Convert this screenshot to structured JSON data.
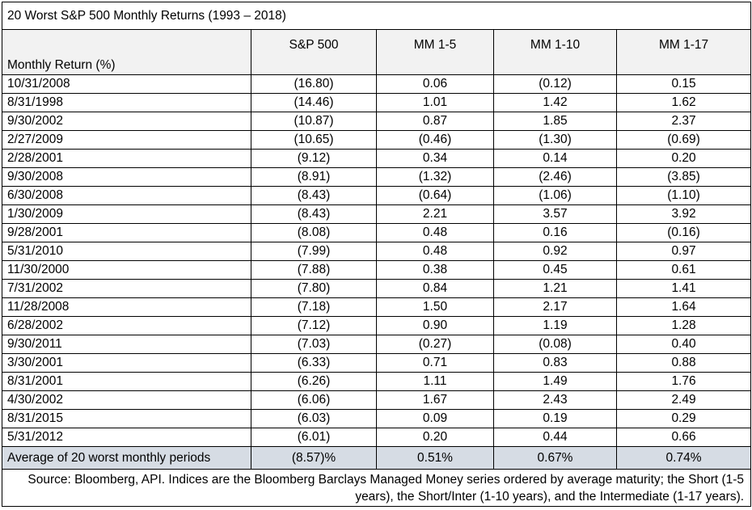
{
  "title": "20 Worst S&P 500 Monthly Returns (1993 – 2018)",
  "headers": [
    "Monthly Return (%)",
    "S&P 500",
    "MM 1-5",
    "MM 1-10",
    "MM 1-17"
  ],
  "rows": [
    [
      "10/31/2008",
      "(16.80)",
      "0.06",
      "(0.12)",
      "0.15"
    ],
    [
      "8/31/1998",
      "(14.46)",
      "1.01",
      "1.42",
      "1.62"
    ],
    [
      "9/30/2002",
      "(10.87)",
      "0.87",
      "1.85",
      "2.37"
    ],
    [
      "2/27/2009",
      "(10.65)",
      "(0.46)",
      "(1.30)",
      "(0.69)"
    ],
    [
      "2/28/2001",
      "(9.12)",
      "0.34",
      "0.14",
      "0.20"
    ],
    [
      "9/30/2008",
      "(8.91)",
      "(1.32)",
      "(2.46)",
      "(3.85)"
    ],
    [
      "6/30/2008",
      "(8.43)",
      "(0.64)",
      "(1.06)",
      "(1.10)"
    ],
    [
      "1/30/2009",
      "(8.43)",
      "2.21",
      "3.57",
      "3.92"
    ],
    [
      "9/28/2001",
      "(8.08)",
      "0.48",
      "0.16",
      "(0.16)"
    ],
    [
      "5/31/2010",
      "(7.99)",
      "0.48",
      "0.92",
      "0.97"
    ],
    [
      "11/30/2000",
      "(7.88)",
      "0.38",
      "0.45",
      "0.61"
    ],
    [
      "7/31/2002",
      "(7.80)",
      "0.84",
      "1.21",
      "1.41"
    ],
    [
      "11/28/2008",
      "(7.18)",
      "1.50",
      "2.17",
      "1.64"
    ],
    [
      "6/28/2002",
      "(7.12)",
      "0.90",
      "1.19",
      "1.28"
    ],
    [
      "9/30/2011",
      "(7.03)",
      "(0.27)",
      "(0.08)",
      "0.40"
    ],
    [
      "3/30/2001",
      "(6.33)",
      "0.71",
      "0.83",
      "0.88"
    ],
    [
      "8/31/2001",
      "(6.26)",
      "1.11",
      "1.49",
      "1.76"
    ],
    [
      "4/30/2002",
      "(6.06)",
      "1.67",
      "2.43",
      "2.49"
    ],
    [
      "8/31/2015",
      "(6.03)",
      "0.09",
      "0.19",
      "0.29"
    ],
    [
      "5/31/2012",
      "(6.01)",
      "0.20",
      "0.44",
      "0.66"
    ]
  ],
  "average_row": [
    "Average of 20 worst monthly periods",
    "(8.57)%",
    "0.51%",
    "0.67%",
    "0.74%"
  ],
  "source": "Source:  Bloomberg, API. Indices are the Bloomberg Barclays Managed Money series ordered by average maturity; the Short (1-5 years), the Short/Inter (1-10 years), and the Intermediate (1-17 years).",
  "colors": {
    "header_bg": "#f2f2f2",
    "average_bg": "#d6dce4",
    "border": "#000000"
  }
}
